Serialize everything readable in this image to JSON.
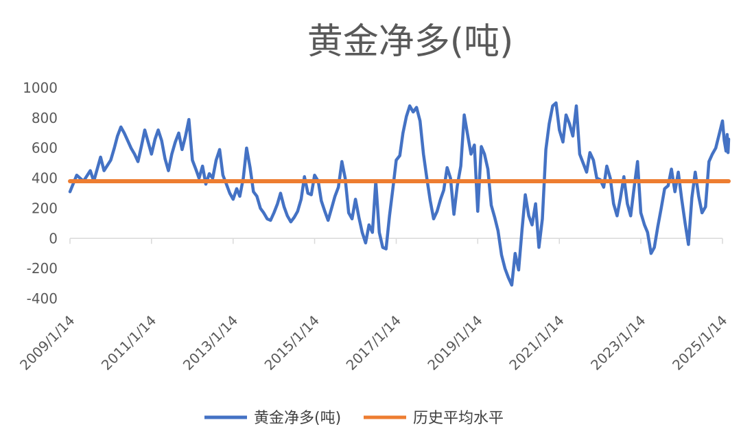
{
  "chart_data": {
    "type": "line",
    "title": "黄金净多(吨)",
    "xlabel": "",
    "ylabel": "",
    "ylim": [
      -400,
      1000
    ],
    "yticks": [
      1000,
      800,
      600,
      400,
      200,
      0,
      -200,
      -400
    ],
    "xticks": [
      "2009/1/14",
      "2011/1/14",
      "2013/1/14",
      "2015/1/14",
      "2017/1/14",
      "2019/1/14",
      "2021/1/14",
      "2023/1/14",
      "2025/1/14"
    ],
    "xlim": [
      "2009-01-14",
      "2025-01-14"
    ],
    "legend_position": "bottom",
    "grid": false,
    "series": [
      {
        "name": "黄金净多(吨)",
        "color": "#4472C4",
        "points": [
          [
            "2009-01-14",
            310
          ],
          [
            "2009-03-15",
            420
          ],
          [
            "2009-05-15",
            380
          ],
          [
            "2009-07-15",
            450
          ],
          [
            "2009-08-15",
            380
          ],
          [
            "2009-10-15",
            540
          ],
          [
            "2009-11-15",
            450
          ],
          [
            "2010-01-14",
            520
          ],
          [
            "2010-02-15",
            600
          ],
          [
            "2010-03-15",
            680
          ],
          [
            "2010-04-15",
            740
          ],
          [
            "2010-05-15",
            700
          ],
          [
            "2010-06-15",
            650
          ],
          [
            "2010-07-15",
            600
          ],
          [
            "2010-08-15",
            560
          ],
          [
            "2010-09-15",
            510
          ],
          [
            "2010-10-15",
            610
          ],
          [
            "2010-11-15",
            720
          ],
          [
            "2010-12-15",
            640
          ],
          [
            "2011-01-14",
            560
          ],
          [
            "2011-02-15",
            660
          ],
          [
            "2011-03-15",
            720
          ],
          [
            "2011-04-15",
            650
          ],
          [
            "2011-05-15",
            530
          ],
          [
            "2011-06-15",
            450
          ],
          [
            "2011-07-15",
            560
          ],
          [
            "2011-08-15",
            640
          ],
          [
            "2011-09-15",
            700
          ],
          [
            "2011-10-15",
            590
          ],
          [
            "2011-11-15",
            680
          ],
          [
            "2011-12-15",
            790
          ],
          [
            "2012-01-15",
            520
          ],
          [
            "2012-02-15",
            460
          ],
          [
            "2012-03-15",
            400
          ],
          [
            "2012-04-15",
            480
          ],
          [
            "2012-05-15",
            360
          ],
          [
            "2012-06-15",
            430
          ],
          [
            "2012-07-15",
            400
          ],
          [
            "2012-08-15",
            520
          ],
          [
            "2012-09-15",
            590
          ],
          [
            "2012-10-15",
            420
          ],
          [
            "2012-11-15",
            360
          ],
          [
            "2012-12-15",
            300
          ],
          [
            "2013-01-14",
            260
          ],
          [
            "2013-02-15",
            330
          ],
          [
            "2013-03-15",
            280
          ],
          [
            "2013-04-15",
            400
          ],
          [
            "2013-05-15",
            600
          ],
          [
            "2013-06-15",
            470
          ],
          [
            "2013-07-15",
            310
          ],
          [
            "2013-08-15",
            280
          ],
          [
            "2013-09-15",
            200
          ],
          [
            "2013-10-15",
            170
          ],
          [
            "2013-11-15",
            130
          ],
          [
            "2013-12-15",
            120
          ],
          [
            "2014-01-15",
            170
          ],
          [
            "2014-02-15",
            230
          ],
          [
            "2014-03-15",
            300
          ],
          [
            "2014-04-15",
            210
          ],
          [
            "2014-05-15",
            150
          ],
          [
            "2014-06-15",
            110
          ],
          [
            "2014-07-15",
            140
          ],
          [
            "2014-08-15",
            180
          ],
          [
            "2014-09-15",
            260
          ],
          [
            "2014-10-15",
            410
          ],
          [
            "2014-11-15",
            300
          ],
          [
            "2014-12-15",
            290
          ],
          [
            "2015-01-14",
            420
          ],
          [
            "2015-02-15",
            380
          ],
          [
            "2015-03-15",
            250
          ],
          [
            "2015-04-15",
            180
          ],
          [
            "2015-05-15",
            120
          ],
          [
            "2015-06-15",
            200
          ],
          [
            "2015-07-15",
            280
          ],
          [
            "2015-08-15",
            340
          ],
          [
            "2015-09-15",
            510
          ],
          [
            "2015-10-15",
            400
          ],
          [
            "2015-11-15",
            170
          ],
          [
            "2015-12-15",
            130
          ],
          [
            "2016-01-15",
            260
          ],
          [
            "2016-02-15",
            140
          ],
          [
            "2016-03-15",
            40
          ],
          [
            "2016-04-15",
            -30
          ],
          [
            "2016-05-15",
            90
          ],
          [
            "2016-06-15",
            40
          ],
          [
            "2016-07-15",
            380
          ],
          [
            "2016-08-15",
            40
          ],
          [
            "2016-09-15",
            -60
          ],
          [
            "2016-10-15",
            -70
          ],
          [
            "2016-11-15",
            150
          ],
          [
            "2016-12-15",
            330
          ],
          [
            "2017-01-14",
            520
          ],
          [
            "2017-02-15",
            550
          ],
          [
            "2017-03-15",
            700
          ],
          [
            "2017-04-15",
            810
          ],
          [
            "2017-05-15",
            880
          ],
          [
            "2017-06-15",
            840
          ],
          [
            "2017-07-15",
            870
          ],
          [
            "2017-08-15",
            780
          ],
          [
            "2017-09-15",
            560
          ],
          [
            "2017-10-15",
            400
          ],
          [
            "2017-11-15",
            250
          ],
          [
            "2017-12-15",
            130
          ],
          [
            "2018-01-15",
            180
          ],
          [
            "2018-02-15",
            260
          ],
          [
            "2018-03-15",
            320
          ],
          [
            "2018-04-15",
            470
          ],
          [
            "2018-05-15",
            400
          ],
          [
            "2018-06-15",
            160
          ],
          [
            "2018-07-15",
            350
          ],
          [
            "2018-08-15",
            480
          ],
          [
            "2018-09-15",
            820
          ],
          [
            "2018-10-15",
            690
          ],
          [
            "2018-11-15",
            560
          ],
          [
            "2018-12-15",
            620
          ],
          [
            "2019-01-14",
            180
          ],
          [
            "2019-02-15",
            610
          ],
          [
            "2019-03-15",
            560
          ],
          [
            "2019-04-15",
            460
          ],
          [
            "2019-05-15",
            220
          ],
          [
            "2019-06-15",
            140
          ],
          [
            "2019-07-15",
            50
          ],
          [
            "2019-08-15",
            -110
          ],
          [
            "2019-09-15",
            -200
          ],
          [
            "2019-10-15",
            -260
          ],
          [
            "2019-11-15",
            -310
          ],
          [
            "2019-12-15",
            -100
          ],
          [
            "2020-01-15",
            -210
          ],
          [
            "2020-02-15",
            60
          ],
          [
            "2020-03-15",
            290
          ],
          [
            "2020-04-15",
            150
          ],
          [
            "2020-05-15",
            90
          ],
          [
            "2020-06-15",
            230
          ],
          [
            "2020-07-15",
            -60
          ],
          [
            "2020-08-15",
            130
          ],
          [
            "2020-09-15",
            590
          ],
          [
            "2020-10-15",
            760
          ],
          [
            "2020-11-15",
            880
          ],
          [
            "2020-12-15",
            900
          ],
          [
            "2021-01-14",
            720
          ],
          [
            "2021-02-15",
            640
          ],
          [
            "2021-03-15",
            820
          ],
          [
            "2021-04-15",
            760
          ],
          [
            "2021-05-15",
            680
          ],
          [
            "2021-06-15",
            880
          ],
          [
            "2021-07-15",
            560
          ],
          [
            "2021-08-15",
            500
          ],
          [
            "2021-09-15",
            440
          ],
          [
            "2021-10-15",
            570
          ],
          [
            "2021-11-15",
            520
          ],
          [
            "2021-12-15",
            400
          ],
          [
            "2022-01-15",
            390
          ],
          [
            "2022-02-15",
            340
          ],
          [
            "2022-03-15",
            480
          ],
          [
            "2022-04-15",
            400
          ],
          [
            "2022-05-15",
            230
          ],
          [
            "2022-06-15",
            150
          ],
          [
            "2022-07-15",
            270
          ],
          [
            "2022-08-15",
            410
          ],
          [
            "2022-09-15",
            230
          ],
          [
            "2022-10-15",
            150
          ],
          [
            "2022-11-15",
            340
          ],
          [
            "2022-12-15",
            510
          ],
          [
            "2023-01-14",
            170
          ],
          [
            "2023-02-15",
            90
          ],
          [
            "2023-03-15",
            40
          ],
          [
            "2023-04-15",
            -100
          ],
          [
            "2023-05-15",
            -60
          ],
          [
            "2023-06-15",
            80
          ],
          [
            "2023-07-15",
            200
          ],
          [
            "2023-08-15",
            330
          ],
          [
            "2023-09-15",
            350
          ],
          [
            "2023-10-15",
            460
          ],
          [
            "2023-11-15",
            310
          ],
          [
            "2023-12-15",
            440
          ],
          [
            "2024-01-15",
            260
          ],
          [
            "2024-02-15",
            100
          ],
          [
            "2024-03-15",
            -40
          ],
          [
            "2024-04-15",
            270
          ],
          [
            "2024-05-15",
            440
          ],
          [
            "2024-06-15",
            280
          ],
          [
            "2024-07-15",
            170
          ],
          [
            "2024-08-15",
            210
          ],
          [
            "2024-09-15",
            510
          ],
          [
            "2024-10-15",
            560
          ],
          [
            "2024-11-15",
            600
          ],
          [
            "2024-12-15",
            690
          ],
          [
            "2025-01-14",
            780
          ],
          [
            "2025-01-30",
            650
          ],
          [
            "2025-02-15",
            580
          ],
          [
            "2025-02-25",
            690
          ],
          [
            "2025-03-05",
            570
          ],
          [
            "2025-03-10",
            660
          ]
        ]
      },
      {
        "name": "历史平均水平",
        "color": "#ED7D31",
        "points": [
          [
            "2009-01-14",
            380
          ],
          [
            "2025-03-10",
            380
          ]
        ]
      }
    ]
  }
}
